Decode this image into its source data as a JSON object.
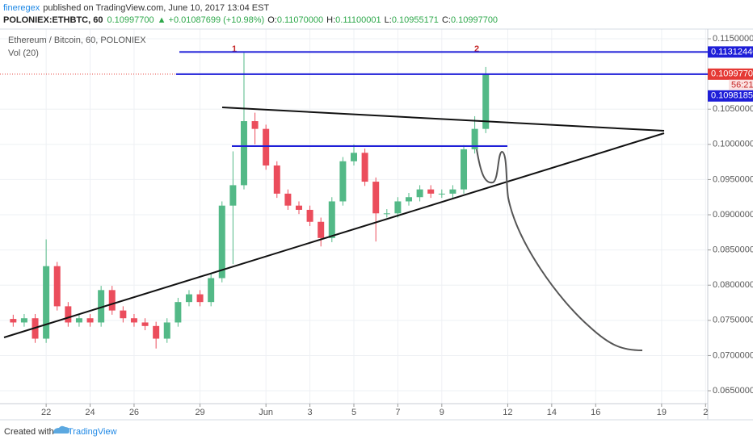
{
  "header": {
    "author": "fineregex",
    "published": "published on TradingView.com, June 10, 2017 13:04 EST",
    "symbol": "POLONIEX:ETHBTC, 60",
    "last": "0.10997700",
    "change": "▲ +0.01087699 (+10.98%)",
    "ohlc": [
      {
        "key": "O:",
        "value": "0.11070000"
      },
      {
        "key": "H:",
        "value": "0.11100001"
      },
      {
        "key": "L:",
        "value": "0.10955171"
      },
      {
        "key": "C:",
        "value": "0.10997700"
      }
    ]
  },
  "chart_data": {
    "type": "candlestick",
    "title": "Ethereum / Bitcoin, 60, POLONIEX",
    "indicator": "Vol (20)",
    "annotations": [
      "1",
      "2"
    ],
    "x": [
      -1.5,
      -1,
      -0.5,
      0,
      0.5,
      1,
      1.5,
      2,
      2.5,
      3,
      3.5,
      4,
      4.5,
      5,
      5.5,
      6,
      6.5,
      7,
      7.5,
      8,
      8.5,
      9,
      9.5,
      10,
      10.5,
      11,
      11.5,
      12,
      12.5,
      13,
      13.5,
      14,
      14.5,
      15,
      15.5,
      16,
      16.5,
      17,
      17.5,
      18,
      18.5,
      19,
      19.5,
      20
    ],
    "open": [
      0.0752,
      0.0747,
      0.0753,
      0.0724,
      0.0827,
      0.077,
      0.0747,
      0.0753,
      0.0747,
      0.0793,
      0.0764,
      0.0753,
      0.0747,
      0.0742,
      0.0724,
      0.0747,
      0.0776,
      0.0787,
      0.0776,
      0.081,
      0.0913,
      0.0942,
      0.1033,
      0.1022,
      0.097,
      0.093,
      0.0913,
      0.0907,
      0.089,
      0.0867,
      0.0919,
      0.0976,
      0.0988,
      0.0947,
      0.0902,
      0.0902,
      0.0919,
      0.0925,
      0.0936,
      0.093,
      0.093,
      0.0936,
      0.0993,
      0.1022
    ],
    "high": [
      0.0758,
      0.0759,
      0.0759,
      0.0865,
      0.0833,
      0.0776,
      0.0759,
      0.0759,
      0.0799,
      0.0799,
      0.077,
      0.0759,
      0.0753,
      0.0748,
      0.0753,
      0.0782,
      0.0793,
      0.0793,
      0.0816,
      0.0919,
      0.099,
      0.113,
      0.1045,
      0.1028,
      0.0976,
      0.0936,
      0.0919,
      0.0913,
      0.0896,
      0.0925,
      0.0982,
      0.1,
      0.0994,
      0.0953,
      0.0908,
      0.0925,
      0.0931,
      0.0942,
      0.0942,
      0.0936,
      0.0942,
      0.0999,
      0.104,
      0.111
    ],
    "low": [
      0.0741,
      0.0741,
      0.0718,
      0.0718,
      0.0764,
      0.0741,
      0.0741,
      0.0741,
      0.0741,
      0.0758,
      0.0747,
      0.0741,
      0.0736,
      0.071,
      0.0718,
      0.0741,
      0.077,
      0.077,
      0.077,
      0.0804,
      0.083,
      0.0936,
      0.1,
      0.0964,
      0.0924,
      0.0907,
      0.0901,
      0.0884,
      0.0855,
      0.0861,
      0.0913,
      0.097,
      0.0941,
      0.0862,
      0.0896,
      0.0896,
      0.0913,
      0.0919,
      0.0924,
      0.0924,
      0.0924,
      0.093,
      0.0987,
      0.1016
    ],
    "close": [
      0.0747,
      0.0753,
      0.0724,
      0.0827,
      0.077,
      0.0747,
      0.0753,
      0.0747,
      0.0793,
      0.0764,
      0.0753,
      0.0747,
      0.0742,
      0.0724,
      0.0747,
      0.0776,
      0.0787,
      0.0776,
      0.081,
      0.0913,
      0.0942,
      0.1033,
      0.1022,
      0.097,
      0.093,
      0.0913,
      0.0907,
      0.089,
      0.0867,
      0.0919,
      0.0976,
      0.0988,
      0.0947,
      0.0902,
      0.0902,
      0.0919,
      0.0925,
      0.0936,
      0.093,
      0.093,
      0.0936,
      0.0993,
      0.1022,
      0.109977
    ],
    "up_color": "#53b987",
    "down_color": "#eb4d5c",
    "xlim": [
      -2.1,
      30.1
    ],
    "xticks": [
      {
        "value": 0,
        "label": "22"
      },
      {
        "value": 2,
        "label": "24"
      },
      {
        "value": 4,
        "label": "26"
      },
      {
        "value": 7,
        "label": "29"
      },
      {
        "value": 10,
        "label": "Jun"
      },
      {
        "value": 12,
        "label": "3"
      },
      {
        "value": 14,
        "label": "5"
      },
      {
        "value": 16,
        "label": "7"
      },
      {
        "value": 18,
        "label": "9"
      },
      {
        "value": 21,
        "label": "12"
      },
      {
        "value": 23,
        "label": "14"
      },
      {
        "value": 25,
        "label": "16"
      },
      {
        "value": 28,
        "label": "19"
      },
      {
        "value": 30,
        "label": "2"
      }
    ],
    "ylim": [
      0.06317,
      0.11638
    ],
    "yticks": [
      {
        "value": 0.115,
        "label": "0.11500000"
      },
      {
        "value": 0.105,
        "label": "0.10500000"
      },
      {
        "value": 0.1,
        "label": "0.10000000"
      },
      {
        "value": 0.095,
        "label": "0.09500000"
      },
      {
        "value": 0.09,
        "label": "0.09000000"
      },
      {
        "value": 0.085,
        "label": "0.08500000"
      },
      {
        "value": 0.08,
        "label": "0.08000000"
      },
      {
        "value": 0.075,
        "label": "0.07500000"
      },
      {
        "value": 0.07,
        "label": "0.07000000"
      },
      {
        "value": 0.065,
        "label": "0.06500000"
      }
    ],
    "grid": true,
    "price_lines": [
      {
        "value": 0.11312446,
        "color": "#1e1ed8"
      },
      {
        "value": 0.109977,
        "label": "0.10997700",
        "color": "#e53935"
      }
    ],
    "countdown": "56:21",
    "extra_label": {
      "value": 0.10981853,
      "color": "#1e1ed8"
    }
  },
  "footer": {
    "created": "Created with",
    "brand": "TradingView"
  }
}
